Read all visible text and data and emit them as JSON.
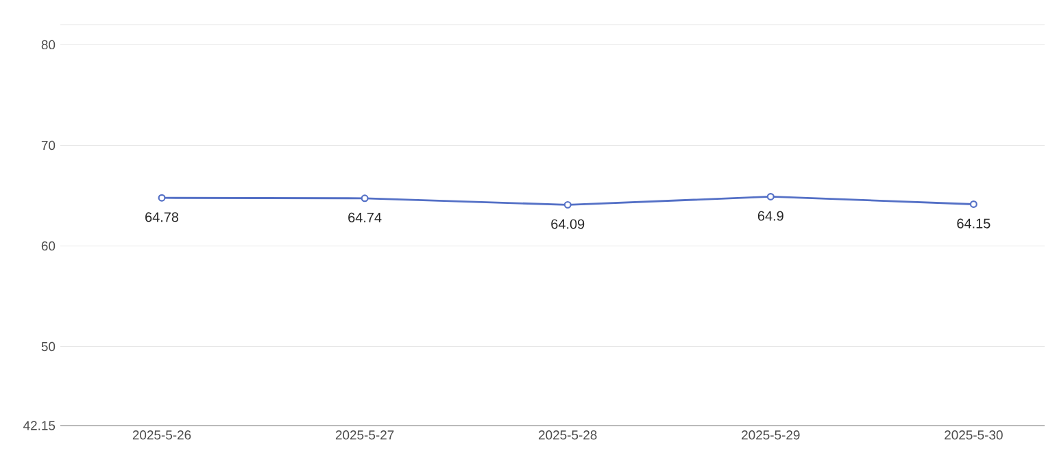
{
  "chart_data": {
    "type": "line",
    "categories": [
      "2025-5-26",
      "2025-5-27",
      "2025-5-28",
      "2025-5-29",
      "2025-5-30"
    ],
    "values": [
      64.78,
      64.74,
      64.09,
      64.9,
      64.15
    ],
    "color": "#5470c6",
    "ylim": [
      42.15,
      82
    ],
    "yticks": [
      42.15,
      50,
      60,
      70,
      80,
      {
        "value": 82,
        "label": null
      }
    ],
    "grid": "y",
    "marker": "circle",
    "data_labels": true
  }
}
